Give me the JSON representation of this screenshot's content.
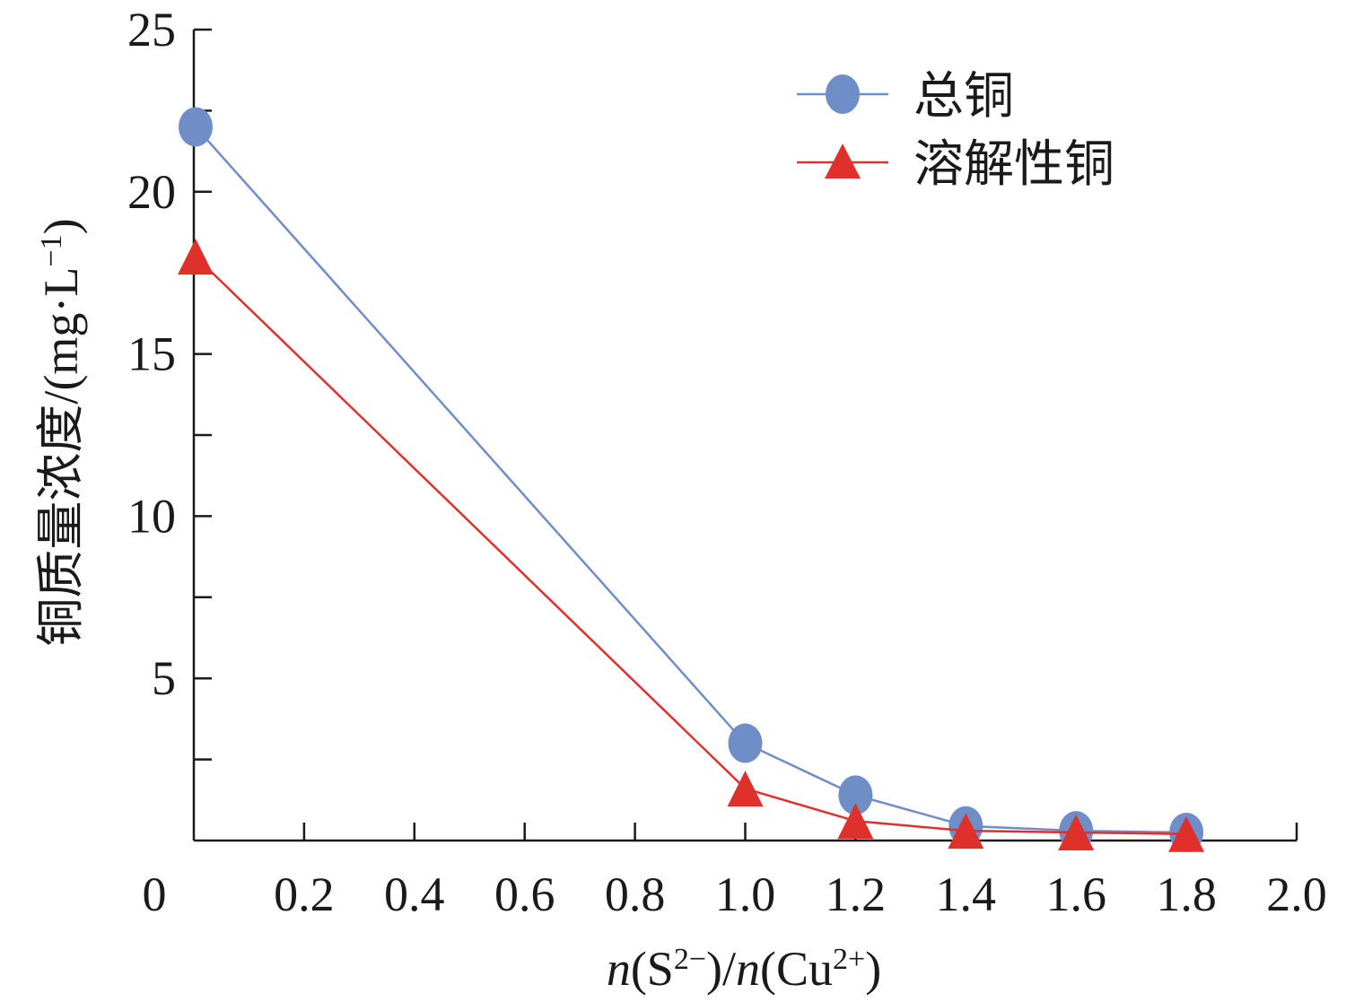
{
  "chart_data": {
    "type": "line",
    "xlabel": {
      "n1": "n",
      "open1": "(S",
      "sup1": "2−",
      "mid": ")/",
      "n2": "n",
      "open2": "(Cu",
      "sup2": "2+",
      "close": ")"
    },
    "ylabel": {
      "main": "铜质量浓度/(mg·L",
      "sup": "−1",
      "close": ")"
    },
    "x_ticks": [
      "0",
      "0.2",
      "0.4",
      "0.6",
      "0.8",
      "1.0",
      "1.2",
      "1.4",
      "1.6",
      "1.8",
      "2.0"
    ],
    "y_ticks": [
      "5",
      "10",
      "15",
      "20",
      "25"
    ],
    "xlim": [
      0,
      2.0
    ],
    "ylim": [
      0,
      25
    ],
    "grid": false,
    "legend_position": "top-right",
    "series": [
      {
        "name": "总铜",
        "marker": "circle",
        "color": "#6f8dc7",
        "x": [
          0,
          1.0,
          1.2,
          1.4,
          1.6,
          1.8
        ],
        "y": [
          22.0,
          3.0,
          1.4,
          0.45,
          0.3,
          0.25
        ]
      },
      {
        "name": "溶解性铜",
        "marker": "triangle",
        "color": "#e0302c",
        "x": [
          0,
          1.0,
          1.2,
          1.4,
          1.6,
          1.8
        ],
        "y": [
          18.0,
          1.6,
          0.6,
          0.3,
          0.25,
          0.2
        ]
      }
    ]
  }
}
